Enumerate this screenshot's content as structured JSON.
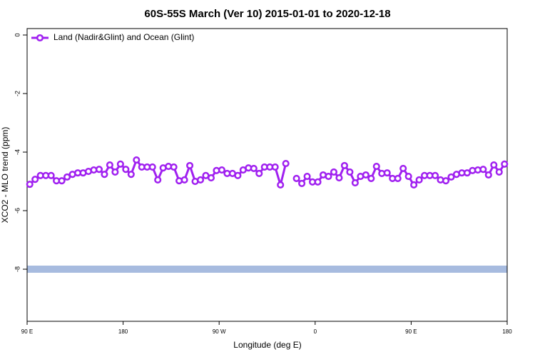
{
  "chart_data": {
    "type": "line",
    "title": "60S-55S March (Ver 10)   2015-01-01 to 2020-12-18",
    "x_label": "Longitude (deg E)",
    "y_label": "XCO2 - MLO trend (ppm)",
    "xlim": [
      90,
      540
    ],
    "ylim": [
      -9.78,
      0.22
    ],
    "xticks": [
      {
        "value": 90,
        "label": "90 E"
      },
      180,
      {
        "value": 270,
        "label": "90 W"
      },
      {
        "value": 360,
        "label": "0"
      },
      {
        "value": 450,
        "label": "90 E"
      },
      {
        "value": 540,
        "label": "180"
      }
    ],
    "yticks": [
      0,
      -2,
      -4,
      -6,
      -8
    ],
    "legend_position": "top-left",
    "reference_band": {
      "y": -8,
      "color": "#a7bbdf"
    },
    "series": [
      {
        "name": "Land (Nadir&Glint) and Ocean (Glint)",
        "color": "#a020f0",
        "x": [
          92.5,
          97.5,
          102.5,
          107.5,
          112.5,
          117.5,
          122.5,
          127.5,
          132.5,
          137.5,
          142.5,
          147.5,
          152.5,
          157.5,
          162.5,
          167.5,
          172.5,
          177.5,
          182.5,
          187.5,
          192.5,
          197.5,
          202.5,
          207.5,
          212.5,
          217.5,
          222.5,
          227.5,
          232.5,
          237.5,
          242.5,
          247.5,
          252.5,
          257.5,
          262.5,
          267.5,
          272.5,
          277.5,
          282.5,
          287.5,
          292.5,
          297.5,
          302.5,
          307.5,
          312.5,
          317.5,
          322.5,
          327.5,
          332.5,
          337.5,
          342.5,
          347.5,
          352.5,
          357.5,
          362.5,
          367.5,
          372.5,
          377.5,
          382.5,
          387.5,
          392.5,
          397.5,
          402.5,
          407.5,
          412.5,
          417.5,
          422.5,
          427.5,
          432.5,
          437.5,
          442.5,
          447.5,
          452.5,
          457.5,
          462.5,
          467.5,
          472.5,
          477.5,
          482.5,
          487.5,
          492.5,
          497.5,
          502.5,
          507.5,
          512.5,
          517.5,
          522.5,
          527.5,
          532.5,
          537.5
        ],
        "values": [
          -5.1,
          -4.93,
          -4.8,
          -4.8,
          -4.8,
          -4.98,
          -4.98,
          -4.85,
          -4.76,
          -4.71,
          -4.71,
          -4.66,
          -4.61,
          -4.59,
          -4.76,
          -4.44,
          -4.68,
          -4.41,
          -4.59,
          -4.76,
          -4.27,
          -4.51,
          -4.51,
          -4.51,
          -4.95,
          -4.54,
          -4.49,
          -4.51,
          -4.98,
          -4.95,
          -4.46,
          -5.0,
          -4.95,
          -4.8,
          -4.88,
          -4.63,
          -4.61,
          -4.73,
          -4.73,
          -4.8,
          -4.61,
          -4.54,
          -4.56,
          -4.73,
          -4.51,
          -4.51,
          -4.51,
          -5.12,
          -4.39,
          null,
          -4.9,
          -5.07,
          -4.83,
          -5.02,
          -5.02,
          -4.78,
          -4.83,
          -4.68,
          -4.88,
          -4.46,
          -4.68,
          -5.05,
          -4.83,
          -4.78,
          -4.9,
          -4.49,
          -4.73,
          -4.71,
          -4.9,
          -4.9,
          -4.56,
          -4.83,
          -5.12,
          -4.95,
          -4.8,
          -4.8,
          -4.8,
          -4.95,
          -4.98,
          -4.85,
          -4.76,
          -4.71,
          -4.71,
          -4.63,
          -4.61,
          -4.59,
          -4.78,
          -4.44,
          -4.68,
          -4.41
        ]
      }
    ]
  }
}
